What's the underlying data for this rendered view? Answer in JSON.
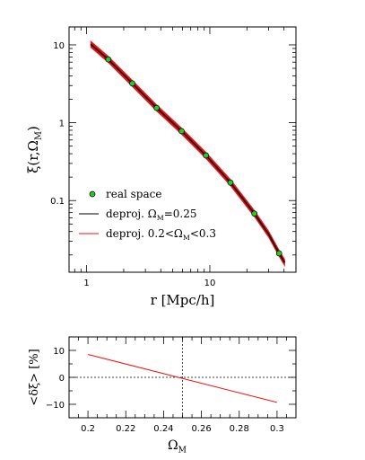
{
  "chart_data": [
    {
      "type": "line",
      "xlabel": "r [Mpc/h]",
      "ylabel": "ξ(r,Ω",
      "ylabel_sub": "M",
      "ylabel_close": ")",
      "xscale": "log",
      "yscale": "log",
      "xlim": [
        0.72,
        50
      ],
      "ylim": [
        0.012,
        17
      ],
      "x_tick_labels": [
        {
          "v": 1,
          "t": "1"
        },
        {
          "v": 10,
          "t": "10"
        }
      ],
      "y_tick_labels": [
        {
          "v": 10,
          "t": "10"
        },
        {
          "v": 1,
          "t": "1"
        },
        {
          "v": 0.1,
          "t": "0.1"
        }
      ],
      "legend_position": "lower-left",
      "series": [
        {
          "name": "real space",
          "marker": "circle",
          "color": "#22cc22",
          "x": [
            1.5,
            2.35,
            3.7,
            5.9,
            9.3,
            14.7,
            23.0,
            36.5
          ],
          "y": [
            6.5,
            3.2,
            1.55,
            0.78,
            0.38,
            0.17,
            0.068,
            0.021
          ]
        },
        {
          "name": "deproj. Ω",
          "name_sub": "M",
          "name_tail": "=0.25",
          "color": "#000000",
          "x": [
            1.08,
            1.5,
            2.35,
            3.7,
            5.9,
            9.3,
            14.7,
            23.0,
            30.0,
            36.5,
            40.5
          ],
          "y": [
            10.2,
            6.5,
            3.2,
            1.55,
            0.78,
            0.38,
            0.17,
            0.068,
            0.037,
            0.021,
            0.016
          ]
        },
        {
          "name": "deproj. 0.2<Ω",
          "name_sub": "M",
          "name_tail": "<0.3",
          "color": "#ee1111",
          "band_width_dex": 0.04,
          "x": [
            1.08,
            1.5,
            2.35,
            3.7,
            5.9,
            9.3,
            14.7,
            23.0,
            30.0,
            36.5,
            40.5
          ],
          "y": [
            10.2,
            6.5,
            3.2,
            1.55,
            0.78,
            0.38,
            0.17,
            0.068,
            0.037,
            0.021,
            0.016
          ]
        }
      ]
    },
    {
      "type": "line",
      "xlabel": "Ω",
      "xlabel_sub": "M",
      "ylabel": "<δξ>  [%]",
      "xlim": [
        0.19,
        0.31
      ],
      "ylim": [
        -15,
        15
      ],
      "x_tick_labels": [
        {
          "v": 0.2,
          "t": "0.2"
        },
        {
          "v": 0.22,
          "t": "0.22"
        },
        {
          "v": 0.24,
          "t": "0.24"
        },
        {
          "v": 0.26,
          "t": "0.26"
        },
        {
          "v": 0.28,
          "t": "0.28"
        },
        {
          "v": 0.3,
          "t": "0.3"
        }
      ],
      "y_tick_labels": [
        {
          "v": 10,
          "t": "10"
        },
        {
          "v": 0,
          "t": "0"
        },
        {
          "v": -10,
          "t": "−10"
        }
      ],
      "reference_lines": {
        "x": 0.25,
        "y": 0
      },
      "series": [
        {
          "color": "#ee1111",
          "x": [
            0.2,
            0.3
          ],
          "y": [
            8.5,
            -9.3
          ]
        }
      ]
    }
  ]
}
